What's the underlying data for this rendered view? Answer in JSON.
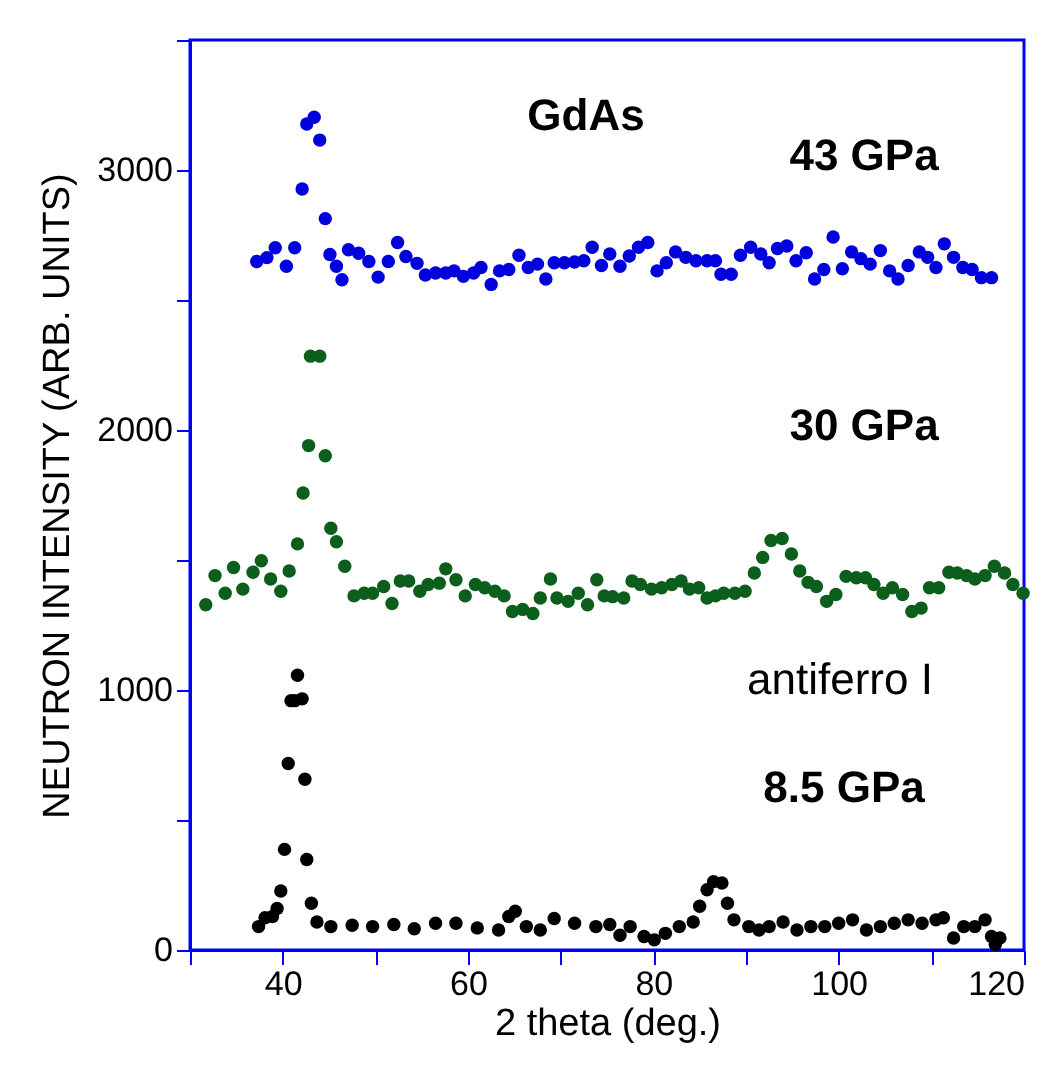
{
  "chart_data": {
    "type": "scatter",
    "xlabel": "2 theta  (deg.)",
    "ylabel": "NEUTRON INTENSITY (ARB. UNITS)",
    "xlim": [
      30,
      120
    ],
    "ylim": [
      0,
      3500
    ],
    "xticks": [
      {
        "value": 30,
        "label": null
      },
      40,
      {
        "value": 50,
        "label": null
      },
      60,
      {
        "value": 70,
        "label": null
      },
      80,
      {
        "value": 90,
        "label": null
      },
      100,
      {
        "value": 110,
        "label": null
      },
      120
    ],
    "yticks": [
      0,
      {
        "value": 500,
        "label": null
      },
      1000,
      {
        "value": 1500,
        "label": null
      },
      2000,
      {
        "value": 2500,
        "label": null
      },
      3000,
      {
        "value": 3500,
        "label": null
      }
    ],
    "grid": false,
    "legend": false,
    "marker": "circle",
    "annotations": [
      "GdAs",
      "antiferro I"
    ],
    "series": [
      {
        "name": "43 GPa",
        "color": "#0000dd",
        "x": [
          37.2,
          38.3,
          39.2,
          40.4,
          41.3,
          42.1,
          42.6,
          43.4,
          44.0,
          44.6,
          45.1,
          45.8,
          46.4,
          47.1,
          48.2,
          49.3,
          50.3,
          51.4,
          52.4,
          53.3,
          54.5,
          55.4,
          56.5,
          57.6,
          58.5,
          59.5,
          60.6,
          61.4,
          62.5,
          63.4,
          64.4,
          65.5,
          66.5,
          67.5,
          68.4,
          69.3,
          70.4,
          71.5,
          72.5,
          73.4,
          74.4,
          75.3,
          76.4,
          77.4,
          78.4,
          79.4,
          80.4,
          81.4,
          82.4,
          83.5,
          84.6,
          85.8,
          86.7,
          87.3,
          88.4,
          89.4,
          90.5,
          91.6,
          92.5,
          93.4,
          94.4,
          95.4,
          96.5,
          97.4,
          98.4,
          99.4,
          100.4,
          101.4,
          102.4,
          103.4,
          104.5,
          105.5,
          106.4,
          107.5,
          108.7,
          109.6,
          110.5,
          111.4,
          112.4,
          113.4,
          114.4,
          115.4,
          116.5
        ],
        "values": [
          2648,
          2663,
          2701,
          2630,
          2701,
          2927,
          3177,
          3203,
          3115,
          2813,
          2675,
          2630,
          2578,
          2693,
          2680,
          2648,
          2588,
          2648,
          2721,
          2667,
          2641,
          2596,
          2604,
          2604,
          2612,
          2591,
          2604,
          2625,
          2560,
          2612,
          2617,
          2672,
          2625,
          2638,
          2581,
          2643,
          2643,
          2646,
          2651,
          2703,
          2633,
          2677,
          2630,
          2669,
          2703,
          2721,
          2612,
          2643,
          2685,
          2664,
          2651,
          2651,
          2651,
          2599,
          2599,
          2672,
          2703,
          2677,
          2643,
          2698,
          2708,
          2651,
          2682,
          2581,
          2617,
          2742,
          2620,
          2685,
          2659,
          2638,
          2690,
          2612,
          2581,
          2633,
          2685,
          2664,
          2625,
          2716,
          2664,
          2625,
          2617,
          2586,
          2586
        ]
      },
      {
        "name": "30 GPa",
        "color": "#0b5e1b",
        "x": [
          31.7,
          32.7,
          33.8,
          34.7,
          35.7,
          36.8,
          37.7,
          38.7,
          39.8,
          40.7,
          41.6,
          42.2,
          42.8,
          43.0,
          44.0,
          44.6,
          45.2,
          45.8,
          46.7,
          47.7,
          48.8,
          49.7,
          50.9,
          51.8,
          52.7,
          53.6,
          54.8,
          55.7,
          56.9,
          57.6,
          58.7,
          59.7,
          60.8,
          61.8,
          62.9,
          63.9,
          64.8,
          65.9,
          67.0,
          67.8,
          68.9,
          69.6,
          70.8,
          71.9,
          72.9,
          73.9,
          74.7,
          75.6,
          76.8,
          77.7,
          78.6,
          79.8,
          80.9,
          82.0,
          83.0,
          83.9,
          84.9,
          85.8,
          86.7,
          87.6,
          88.8,
          89.9,
          90.9,
          91.8,
          92.7,
          93.9,
          94.9,
          95.8,
          96.7,
          97.6,
          98.7,
          99.7,
          100.8,
          101.9,
          102.9,
          103.8,
          104.8,
          105.8,
          106.9,
          107.9,
          108.9,
          109.8,
          110.8,
          111.9,
          112.8,
          113.8,
          114.7,
          115.8,
          116.8,
          117.9,
          118.8,
          119.9
        ],
        "values": [
          1328,
          1440,
          1372,
          1471,
          1388,
          1453,
          1497,
          1427,
          1380,
          1458,
          1562,
          1758,
          1940,
          2284,
          2284,
          1901,
          1622,
          1570,
          1476,
          1362,
          1372,
          1372,
          1398,
          1333,
          1419,
          1419,
          1380,
          1406,
          1411,
          1466,
          1424,
          1362,
          1406,
          1393,
          1380,
          1362,
          1302,
          1310,
          1294,
          1354,
          1427,
          1354,
          1341,
          1372,
          1328,
          1424,
          1362,
          1359,
          1354,
          1419,
          1406,
          1388,
          1393,
          1406,
          1419,
          1388,
          1393,
          1354,
          1362,
          1372,
          1372,
          1380,
          1450,
          1510,
          1575,
          1583,
          1523,
          1458,
          1414,
          1398,
          1341,
          1367,
          1437,
          1432,
          1432,
          1406,
          1372,
          1393,
          1367,
          1302,
          1315,
          1393,
          1393,
          1453,
          1450,
          1440,
          1427,
          1440,
          1476,
          1450,
          1406,
          1372
        ]
      },
      {
        "name": "8.5 GPa",
        "color": "#000000",
        "x": [
          37.4,
          38.1,
          38.9,
          39.4,
          39.8,
          40.2,
          40.6,
          40.9,
          41.3,
          41.6,
          42.1,
          42.4,
          42.6,
          43.1,
          43.7,
          45.2,
          47.5,
          49.7,
          52.0,
          54.2,
          56.5,
          58.7,
          61.0,
          63.3,
          64.4,
          65.1,
          66.3,
          67.8,
          69.3,
          71.5,
          73.8,
          75.3,
          76.4,
          77.5,
          79.0,
          80.1,
          81.3,
          82.8,
          84.3,
          85.0,
          85.8,
          86.5,
          87.4,
          88.0,
          88.7,
          90.3,
          91.4,
          92.5,
          94.0,
          95.5,
          97.0,
          98.5,
          100.0,
          101.5,
          103.0,
          104.5,
          106.0,
          107.5,
          109.0,
          110.5,
          111.3,
          112.4,
          113.5,
          114.7,
          115.8,
          116.5,
          116.9,
          117.4
        ],
        "values": [
          90,
          124,
          129,
          160,
          227,
          387,
          717,
          959,
          959,
          1057,
          966,
          657,
          348,
          180,
          108,
          90,
          95,
          90,
          98,
          82,
          103,
          103,
          85,
          77,
          129,
          149,
          90,
          77,
          121,
          103,
          90,
          98,
          57,
          90,
          52,
          39,
          64,
          90,
          108,
          168,
          232,
          263,
          258,
          180,
          116,
          90,
          77,
          90,
          108,
          77,
          90,
          90,
          103,
          116,
          77,
          90,
          103,
          116,
          103,
          116,
          124,
          46,
          90,
          90,
          116,
          52,
          21,
          46
        ]
      }
    ]
  }
}
